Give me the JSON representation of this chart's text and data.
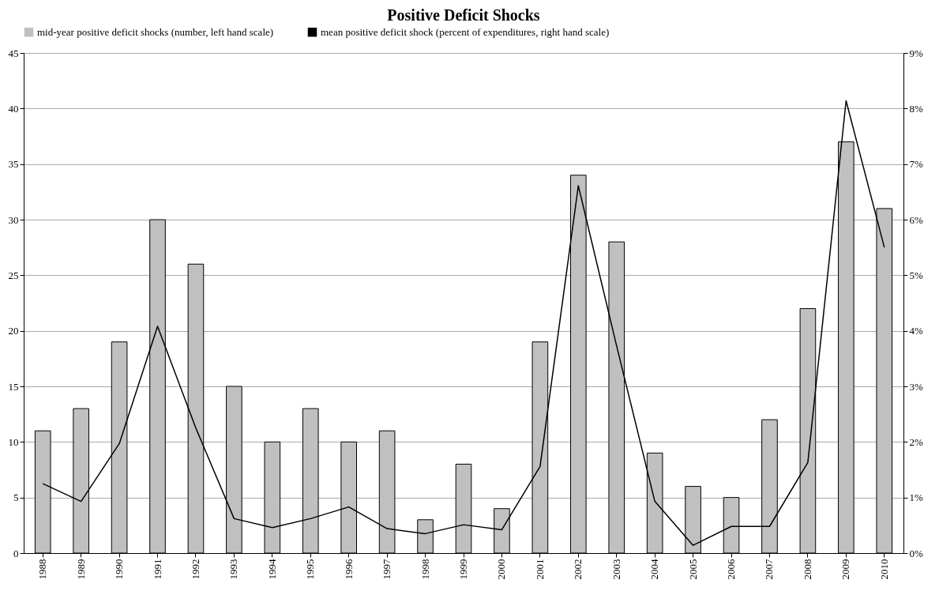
{
  "chart_data": {
    "type": "bar",
    "title": "Positive Deficit Shocks",
    "categories": [
      "1988",
      "1989",
      "1990",
      "1991",
      "1992",
      "1993",
      "1994",
      "1995",
      "1996",
      "1997",
      "1998",
      "1999",
      "2000",
      "2001",
      "2002",
      "2003",
      "2004",
      "2005",
      "2006",
      "2007",
      "2008",
      "2009",
      "2010"
    ],
    "series": [
      {
        "name": "mid-year positive deficit shocks (number, left hand scale)",
        "color": "#c0c0c0",
        "values": [
          11,
          13,
          19,
          30,
          26,
          15,
          10,
          13,
          10,
          11,
          3,
          8,
          4,
          19,
          34,
          28,
          9,
          6,
          5,
          12,
          22,
          37,
          31
        ]
      },
      {
        "name": "mean positive deficit shock (percent of expenditures, right hand scale)",
        "type": "line",
        "axis": "y2",
        "color": "#000000",
        "values": [
          1.25,
          0.93,
          1.97,
          4.08,
          2.25,
          0.62,
          0.46,
          0.62,
          0.83,
          0.44,
          0.35,
          0.51,
          0.42,
          1.56,
          6.61,
          3.73,
          0.93,
          0.14,
          0.48,
          0.48,
          1.63,
          8.14,
          5.5
        ]
      }
    ],
    "ylim": [
      0,
      45
    ],
    "yticks": [
      0,
      5,
      10,
      15,
      20,
      25,
      30,
      35,
      40,
      45
    ],
    "y2lim": [
      0,
      9
    ],
    "y2ticks": [
      {
        "value": 0,
        "label": "0%"
      },
      {
        "value": 1,
        "label": "1%"
      },
      {
        "value": 2,
        "label": "2%"
      },
      {
        "value": 3,
        "label": "3%"
      },
      {
        "value": 4,
        "label": "4%"
      },
      {
        "value": 5,
        "label": "5%"
      },
      {
        "value": 6,
        "label": "6%"
      },
      {
        "value": 7,
        "label": "7%"
      },
      {
        "value": 8,
        "label": "8%"
      },
      {
        "value": 9,
        "label": "9%"
      }
    ],
    "grid": "y",
    "legend": "top"
  }
}
